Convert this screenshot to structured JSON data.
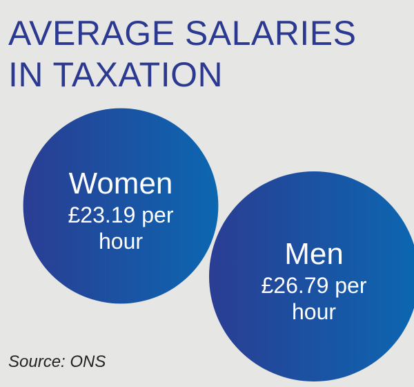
{
  "header": {
    "title_line1": "AVERAGE SALARIES",
    "title_line2": "IN TAXATION"
  },
  "chart_data": {
    "type": "bubble",
    "categories": [
      "Women",
      "Men"
    ],
    "values": [
      23.19,
      26.79
    ],
    "value_labels_line1": [
      "£23.19 per",
      "£26.79 per"
    ],
    "value_labels_line2": [
      "hour",
      "hour"
    ],
    "unit": "£ per hour",
    "colors": {
      "gradient_start": "#2a3d93",
      "gradient_end": "#0c67b1"
    }
  },
  "footer": {
    "source": "Source: ONS"
  }
}
